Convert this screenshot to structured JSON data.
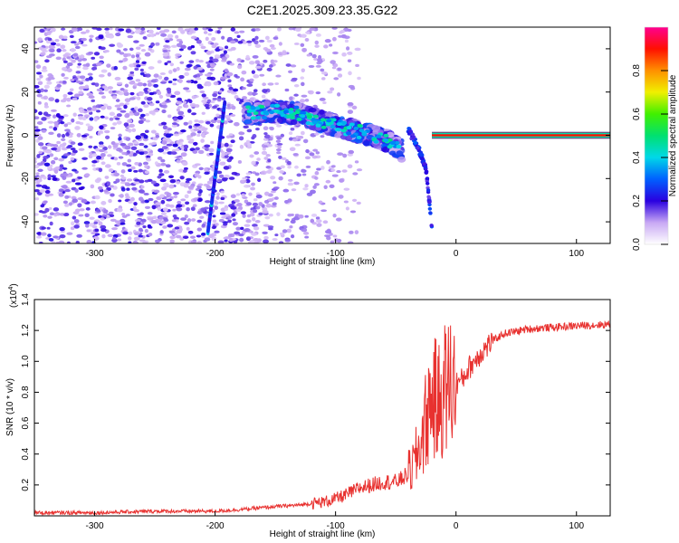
{
  "title": "C2E1.2025.309.23.35.G22",
  "chart_data": [
    {
      "type": "heatmap",
      "xlabel": "Height of straight line (km)",
      "ylabel": "Frequency (Hz)",
      "xlim": [
        -350,
        128
      ],
      "ylim": [
        -50,
        50
      ],
      "xticks": [
        -300,
        -200,
        -100,
        0,
        100
      ],
      "yticks": [
        -40,
        -20,
        0,
        20,
        40
      ],
      "colorbar": {
        "label": "Normalized spectral amplitude",
        "range": [
          0,
          1
        ],
        "ticks": [
          "0.0",
          "0.2",
          "0.4",
          "0.6",
          "0.8"
        ],
        "tick_values": [
          0,
          0.2,
          0.4,
          0.6,
          0.8
        ]
      },
      "features": {
        "noise_region_x": [
          -350,
          -120
        ],
        "streak": {
          "x_start": -206,
          "y_start": -45,
          "x_end": -192,
          "y_end": 15
        },
        "blob_band": [
          {
            "x": -175,
            "y": 10
          },
          {
            "x": -150,
            "y": 11
          },
          {
            "x": -130,
            "y": 10
          },
          {
            "x": -110,
            "y": 6
          },
          {
            "x": -90,
            "y": 3
          },
          {
            "x": -70,
            "y": 0
          },
          {
            "x": -55,
            "y": -3
          },
          {
            "x": -45,
            "y": -7
          }
        ],
        "branch": [
          {
            "x": -40,
            "y": 3
          },
          {
            "x": -32,
            "y": -5
          },
          {
            "x": -25,
            "y": -15
          },
          {
            "x": -20,
            "y": -42
          }
        ],
        "tone_line": {
          "x_start": -20,
          "x_end": 128,
          "y": 0
        }
      }
    },
    {
      "type": "line",
      "xlabel": "Height of straight line (km)",
      "ylabel": "SNR (10 * v/v)",
      "scale_note": "(x10",
      "scale_exp": "4",
      "xlim": [
        -350,
        128
      ],
      "ylim": [
        0,
        1.4
      ],
      "xticks": [
        -300,
        -200,
        -100,
        0,
        100
      ],
      "yticks": [
        0.2,
        0.4,
        0.6,
        0.8,
        1.0,
        1.2,
        1.4
      ],
      "series": [
        {
          "color": "#e8312f",
          "x": [
            -350,
            -300,
            -250,
            -200,
            -180,
            -150,
            -130,
            -110,
            -100,
            -90,
            -80,
            -70,
            -60,
            -50,
            -45,
            -40,
            -35,
            -30,
            -25,
            -20,
            -15,
            -10,
            -5,
            0,
            5,
            10,
            20,
            30,
            40,
            60,
            80,
            100,
            128
          ],
          "y": [
            0.02,
            0.02,
            0.03,
            0.03,
            0.04,
            0.06,
            0.07,
            0.09,
            0.11,
            0.14,
            0.18,
            0.2,
            0.22,
            0.22,
            0.24,
            0.27,
            0.33,
            0.45,
            0.62,
            0.78,
            0.72,
            0.82,
            0.86,
            0.86,
            0.88,
            0.95,
            1.05,
            1.13,
            1.18,
            1.21,
            1.22,
            1.23,
            1.24
          ]
        }
      ]
    }
  ]
}
